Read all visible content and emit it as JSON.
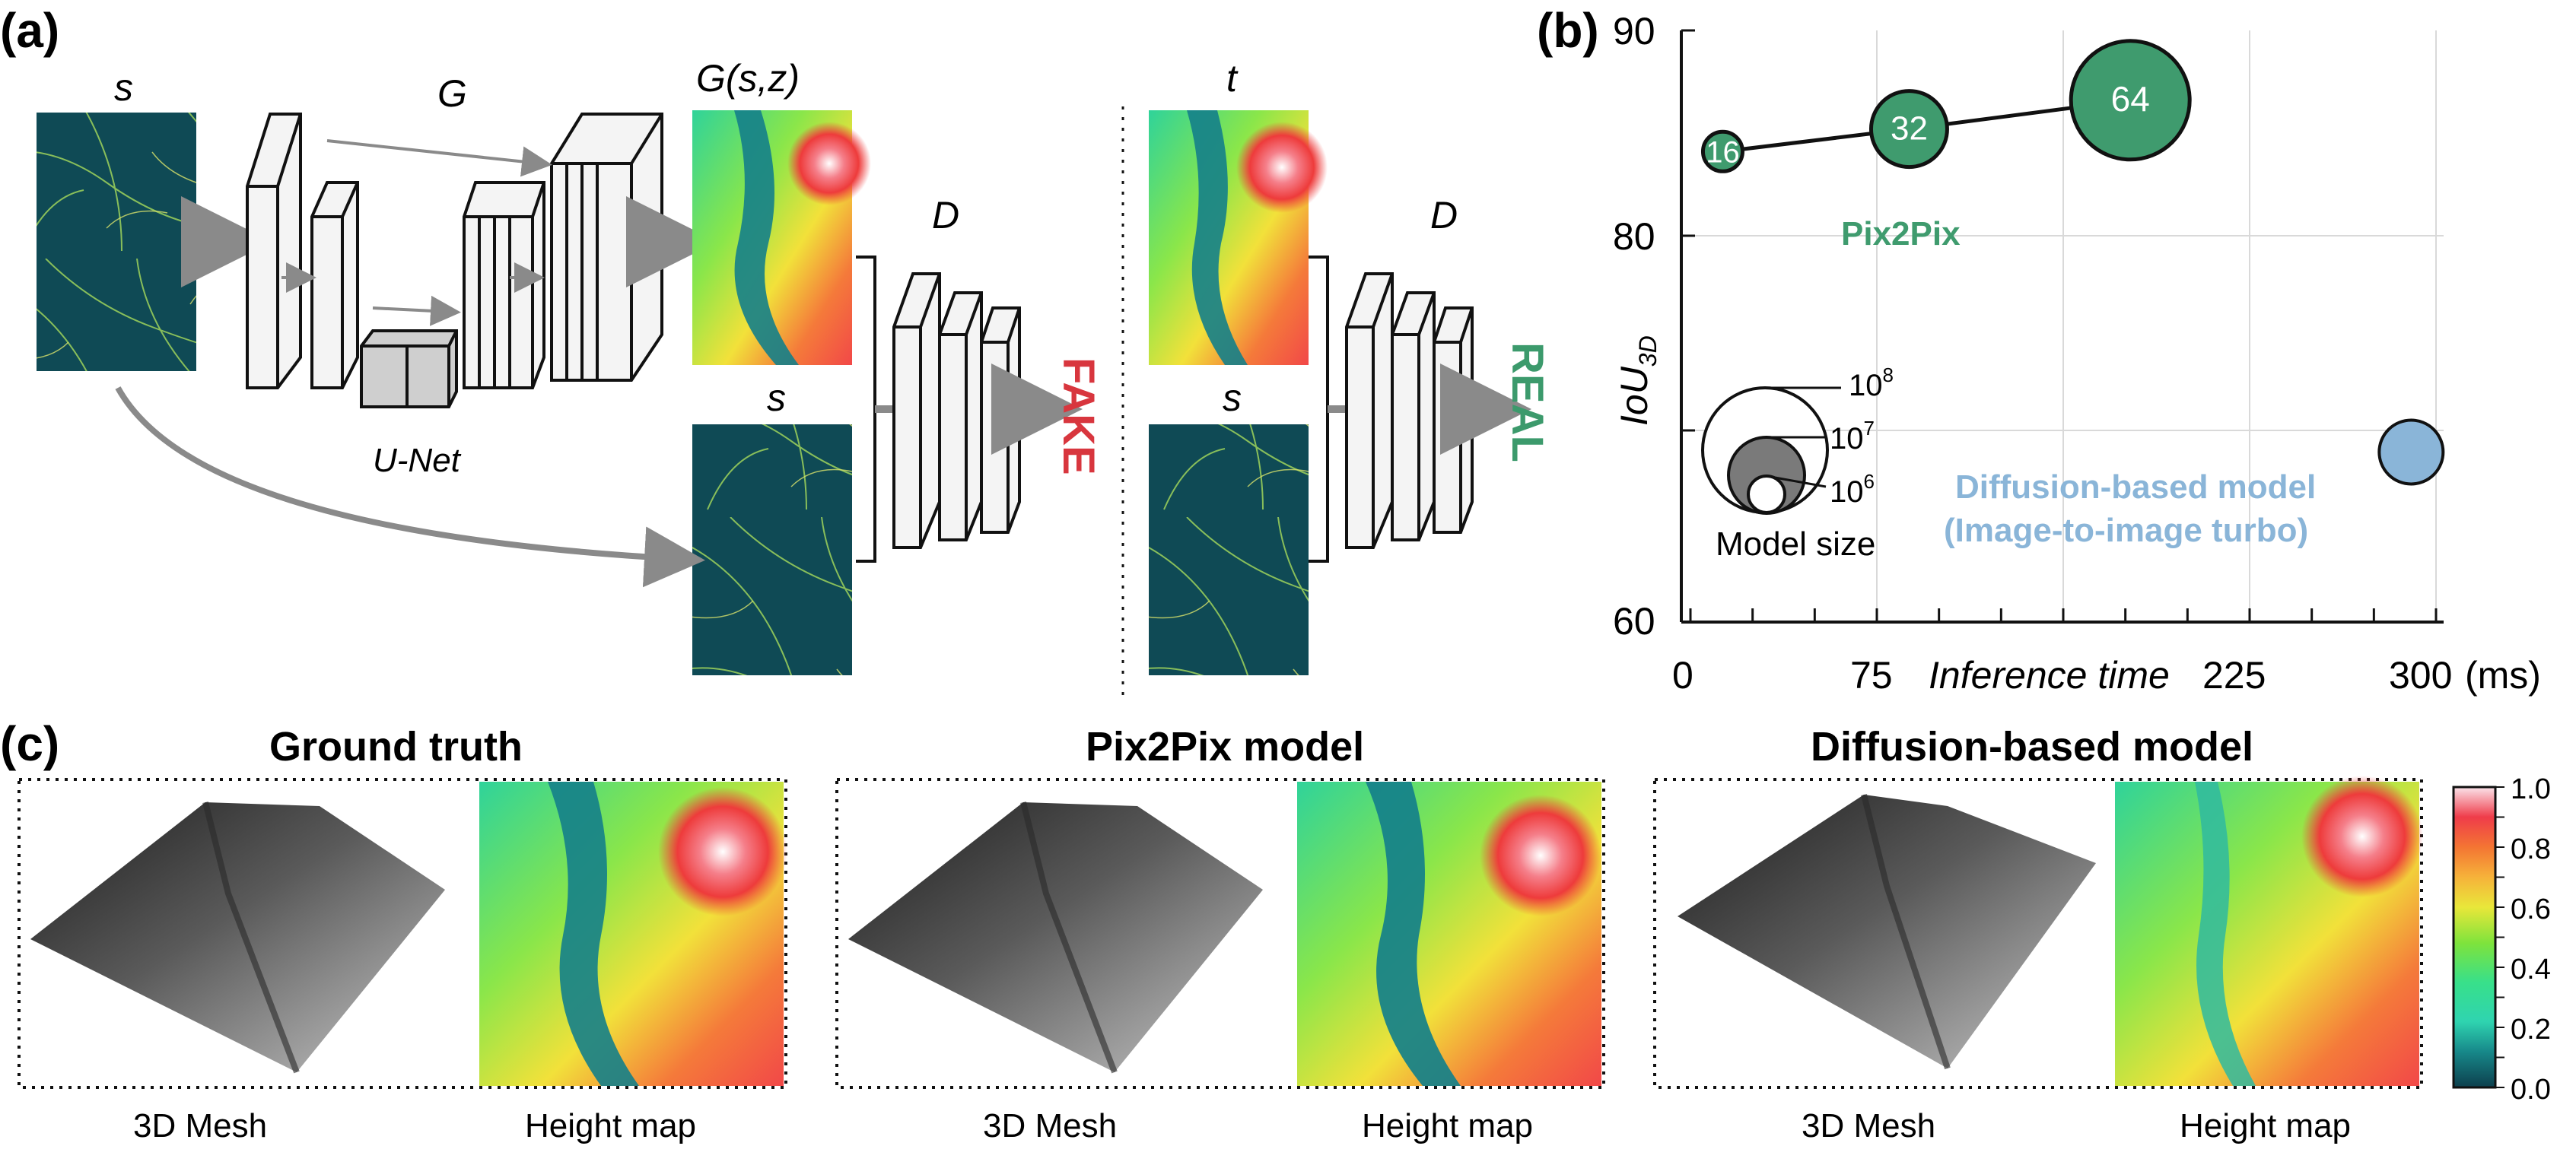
{
  "panel_a": {
    "label": "(a)",
    "input_label": "s",
    "generator_label": "G",
    "generator_output_label": "G(s,z)",
    "unet_label": "U-Net",
    "condition_label_fake": "s",
    "discriminator_label_fake": "D",
    "fake_label": "FAKE",
    "target_label": "t",
    "condition_label_real": "s",
    "discriminator_label_real": "D",
    "real_label": "REAL",
    "colors": {
      "fake": "#d8363e",
      "real": "#3c9a6c",
      "terrain_bg": "#0f4a55"
    }
  },
  "panel_b": {
    "label": "(b)",
    "chart_data": {
      "type": "scatter",
      "x_ticks": [
        "0",
        "75",
        "225",
        "300"
      ],
      "x_unit": "(ms)",
      "xlabel": "Inference time",
      "y_ticks": [
        "60",
        "80",
        "90"
      ],
      "ylabel_main": "IoU",
      "ylabel_sub": "3D",
      "xlim": [
        0,
        300
      ],
      "ylim": [
        60,
        90
      ],
      "grid": true,
      "series": [
        {
          "name": "Pix2Pix",
          "color": "#3f9b6e",
          "connected": true,
          "points": [
            {
              "x": 13,
              "y": 84.1,
              "label": "16"
            },
            {
              "x": 88,
              "y": 85.2,
              "label": "32"
            },
            {
              "x": 177,
              "y": 86.6,
              "label": "64"
            }
          ]
        },
        {
          "name_line1": "Diffusion-based model",
          "name_line2": "(Image-to-image turbo)",
          "color": "#8ab5d8",
          "connected": false,
          "points": [
            {
              "x": 290,
              "y": 68.8
            }
          ]
        }
      ],
      "size_legend": {
        "title": "Model size",
        "entries": [
          {
            "base": "10",
            "exp": "8"
          },
          {
            "base": "10",
            "exp": "7"
          },
          {
            "base": "10",
            "exp": "6"
          }
        ]
      }
    }
  },
  "panel_c": {
    "label": "(c)",
    "groups": [
      {
        "title": "Ground truth",
        "mesh_label": "3D Mesh",
        "map_label": "Height map"
      },
      {
        "title": "Pix2Pix model",
        "mesh_label": "3D Mesh",
        "map_label": "Height map"
      },
      {
        "title": "Diffusion-based model",
        "mesh_label": "3D Mesh",
        "map_label": "Height map"
      }
    ],
    "colorbar_ticks": [
      "1.0",
      "0.8",
      "0.6",
      "0.4",
      "0.2",
      "0.0"
    ]
  }
}
